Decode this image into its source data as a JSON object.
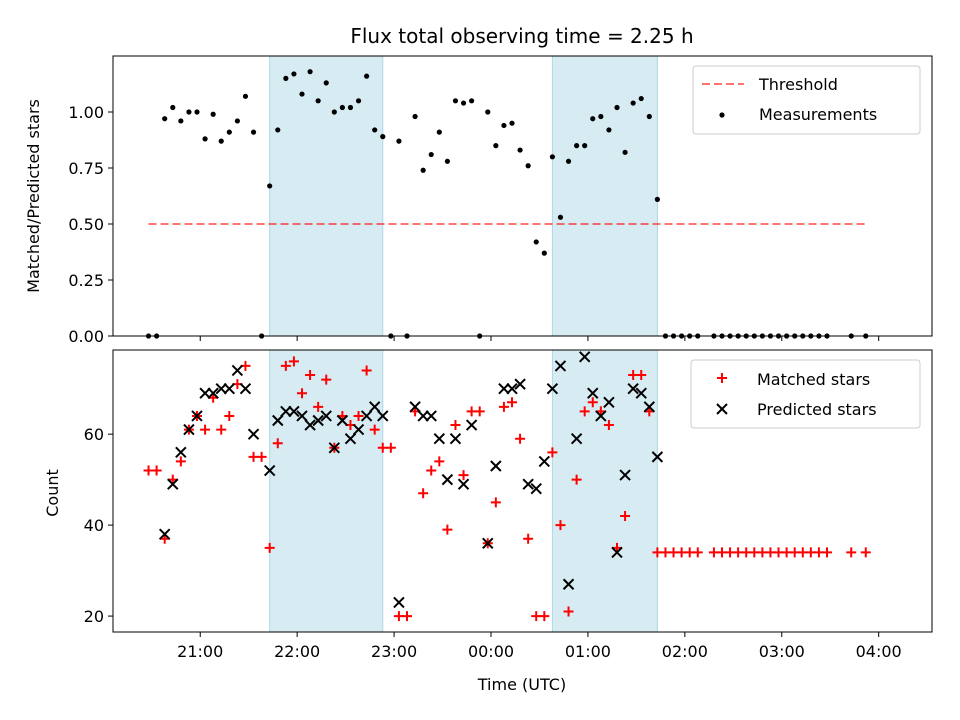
{
  "chart_data": [
    {
      "type": "scatter",
      "title": "Flux total observing time = 2.25 h",
      "xlabel": "",
      "ylabel": "Matched/Predicted stars",
      "ylim": [
        0,
        1.25
      ],
      "yticks": [
        "0.00",
        "0.25",
        "0.50",
        "0.75",
        "1.00"
      ],
      "xlim_hours": [
        20.1,
        28.55
      ],
      "grid": false,
      "legend": "top-right",
      "shaded_intervals": [
        [
          "21:43",
          "22:53"
        ],
        [
          "00:38",
          "01:43"
        ]
      ],
      "threshold": {
        "name": "Threshold",
        "value": 0.5,
        "x_start": "20:28",
        "x_end": "03:52"
      },
      "series": [
        {
          "name": "Measurements",
          "marker": "dot",
          "color": "#000000",
          "points": [
            [
              "20:28",
              0.0
            ],
            [
              "20:33",
              0.0
            ],
            [
              "20:38",
              0.97
            ],
            [
              "20:43",
              1.02
            ],
            [
              "20:48",
              0.96
            ],
            [
              "20:53",
              1.0
            ],
            [
              "20:58",
              1.0
            ],
            [
              "21:03",
              0.88
            ],
            [
              "21:08",
              0.99
            ],
            [
              "21:13",
              0.87
            ],
            [
              "21:18",
              0.91
            ],
            [
              "21:23",
              0.96
            ],
            [
              "21:28",
              1.07
            ],
            [
              "21:33",
              0.91
            ],
            [
              "21:38",
              0.0
            ],
            [
              "21:43",
              0.67
            ],
            [
              "21:48",
              0.92
            ],
            [
              "21:53",
              1.15
            ],
            [
              "21:58",
              1.17
            ],
            [
              "22:03",
              1.08
            ],
            [
              "22:08",
              1.18
            ],
            [
              "22:13",
              1.05
            ],
            [
              "22:18",
              1.13
            ],
            [
              "22:23",
              1.0
            ],
            [
              "22:28",
              1.02
            ],
            [
              "22:33",
              1.02
            ],
            [
              "22:38",
              1.05
            ],
            [
              "22:43",
              1.16
            ],
            [
              "22:48",
              0.92
            ],
            [
              "22:53",
              0.89
            ],
            [
              "22:58",
              0.0
            ],
            [
              "23:03",
              0.87
            ],
            [
              "23:08",
              0.0
            ],
            [
              "23:13",
              0.98
            ],
            [
              "23:18",
              0.74
            ],
            [
              "23:23",
              0.81
            ],
            [
              "23:28",
              0.91
            ],
            [
              "23:33",
              0.78
            ],
            [
              "23:38",
              1.05
            ],
            [
              "23:43",
              1.04
            ],
            [
              "23:48",
              1.05
            ],
            [
              "23:53",
              0.0
            ],
            [
              "23:58",
              1.0
            ],
            [
              "00:03",
              0.85
            ],
            [
              "00:08",
              0.94
            ],
            [
              "00:13",
              0.95
            ],
            [
              "00:18",
              0.83
            ],
            [
              "00:23",
              0.76
            ],
            [
              "00:28",
              0.42
            ],
            [
              "00:33",
              0.37
            ],
            [
              "00:38",
              0.8
            ],
            [
              "00:43",
              0.53
            ],
            [
              "00:48",
              0.78
            ],
            [
              "00:53",
              0.85
            ],
            [
              "00:58",
              0.85
            ],
            [
              "01:03",
              0.97
            ],
            [
              "01:08",
              0.98
            ],
            [
              "01:13",
              0.92
            ],
            [
              "01:18",
              1.02
            ],
            [
              "01:23",
              0.82
            ],
            [
              "01:28",
              1.04
            ],
            [
              "01:33",
              1.06
            ],
            [
              "01:38",
              0.98
            ],
            [
              "01:43",
              0.61
            ],
            [
              "01:48",
              0.0
            ],
            [
              "01:53",
              0.0
            ],
            [
              "01:58",
              0.0
            ],
            [
              "02:03",
              0.0
            ],
            [
              "02:08",
              0.0
            ],
            [
              "02:18",
              0.0
            ],
            [
              "02:23",
              0.0
            ],
            [
              "02:28",
              0.0
            ],
            [
              "02:33",
              0.0
            ],
            [
              "02:38",
              0.0
            ],
            [
              "02:43",
              0.0
            ],
            [
              "02:48",
              0.0
            ],
            [
              "02:53",
              0.0
            ],
            [
              "02:58",
              0.0
            ],
            [
              "03:03",
              0.0
            ],
            [
              "03:08",
              0.0
            ],
            [
              "03:13",
              0.0
            ],
            [
              "03:18",
              0.0
            ],
            [
              "03:23",
              0.0
            ],
            [
              "03:28",
              0.0
            ],
            [
              "03:43",
              0.0
            ],
            [
              "03:52",
              0.0
            ]
          ]
        }
      ]
    },
    {
      "type": "scatter",
      "title": "",
      "xlabel": "Time (UTC)",
      "ylabel": "Count",
      "ylim": [
        16.5,
        78.5
      ],
      "yticks": [
        "20",
        "40",
        "60"
      ],
      "xticks": [
        "21:00",
        "22:00",
        "23:00",
        "00:00",
        "01:00",
        "02:00",
        "03:00",
        "04:00"
      ],
      "xlim_hours": [
        20.1,
        28.55
      ],
      "grid": false,
      "legend": "top-right",
      "shaded_intervals": [
        [
          "21:43",
          "22:53"
        ],
        [
          "00:38",
          "01:43"
        ]
      ],
      "series": [
        {
          "name": "Matched stars",
          "marker": "plus",
          "color": "#ff0000",
          "points": [
            [
              "20:28",
              52
            ],
            [
              "20:33",
              52
            ],
            [
              "20:38",
              37
            ],
            [
              "20:43",
              50
            ],
            [
              "20:48",
              54
            ],
            [
              "20:53",
              61
            ],
            [
              "20:58",
              64
            ],
            [
              "21:03",
              61
            ],
            [
              "21:08",
              68
            ],
            [
              "21:13",
              61
            ],
            [
              "21:18",
              64
            ],
            [
              "21:23",
              71
            ],
            [
              "21:28",
              75
            ],
            [
              "21:33",
              55
            ],
            [
              "21:38",
              55
            ],
            [
              "21:43",
              35
            ],
            [
              "21:48",
              58
            ],
            [
              "21:53",
              75
            ],
            [
              "21:58",
              76
            ],
            [
              "22:03",
              69
            ],
            [
              "22:08",
              73
            ],
            [
              "22:13",
              66
            ],
            [
              "22:18",
              72
            ],
            [
              "22:23",
              57
            ],
            [
              "22:28",
              64
            ],
            [
              "22:33",
              62
            ],
            [
              "22:38",
              64
            ],
            [
              "22:43",
              74
            ],
            [
              "22:48",
              61
            ],
            [
              "22:53",
              57
            ],
            [
              "22:58",
              57
            ],
            [
              "23:03",
              20
            ],
            [
              "23:08",
              20
            ],
            [
              "23:13",
              65
            ],
            [
              "23:18",
              47
            ],
            [
              "23:23",
              52
            ],
            [
              "23:28",
              54
            ],
            [
              "23:33",
              39
            ],
            [
              "23:38",
              62
            ],
            [
              "23:43",
              51
            ],
            [
              "23:48",
              65
            ],
            [
              "23:53",
              65
            ],
            [
              "23:58",
              36
            ],
            [
              "00:03",
              45
            ],
            [
              "00:08",
              66
            ],
            [
              "00:13",
              67
            ],
            [
              "00:18",
              59
            ],
            [
              "00:23",
              37
            ],
            [
              "00:28",
              20
            ],
            [
              "00:33",
              20
            ],
            [
              "00:38",
              56
            ],
            [
              "00:43",
              40
            ],
            [
              "00:48",
              21
            ],
            [
              "00:53",
              50
            ],
            [
              "00:58",
              65
            ],
            [
              "01:03",
              67
            ],
            [
              "01:08",
              65
            ],
            [
              "01:13",
              62
            ],
            [
              "01:18",
              35
            ],
            [
              "01:23",
              42
            ],
            [
              "01:28",
              73
            ],
            [
              "01:33",
              73
            ],
            [
              "01:38",
              65
            ],
            [
              "01:43",
              34
            ],
            [
              "01:48",
              34
            ],
            [
              "01:53",
              34
            ],
            [
              "01:58",
              34
            ],
            [
              "02:03",
              34
            ],
            [
              "02:08",
              34
            ],
            [
              "02:18",
              34
            ],
            [
              "02:23",
              34
            ],
            [
              "02:28",
              34
            ],
            [
              "02:33",
              34
            ],
            [
              "02:38",
              34
            ],
            [
              "02:43",
              34
            ],
            [
              "02:48",
              34
            ],
            [
              "02:53",
              34
            ],
            [
              "02:58",
              34
            ],
            [
              "03:03",
              34
            ],
            [
              "03:08",
              34
            ],
            [
              "03:13",
              34
            ],
            [
              "03:18",
              34
            ],
            [
              "03:23",
              34
            ],
            [
              "03:28",
              34
            ],
            [
              "03:43",
              34
            ],
            [
              "03:52",
              34
            ]
          ]
        },
        {
          "name": "Predicted stars",
          "marker": "x",
          "color": "#000000",
          "points": [
            [
              "20:38",
              38
            ],
            [
              "20:43",
              49
            ],
            [
              "20:48",
              56
            ],
            [
              "20:53",
              61
            ],
            [
              "20:58",
              64
            ],
            [
              "21:03",
              69
            ],
            [
              "21:08",
              69
            ],
            [
              "21:13",
              70
            ],
            [
              "21:18",
              70
            ],
            [
              "21:23",
              74
            ],
            [
              "21:28",
              70
            ],
            [
              "21:33",
              60
            ],
            [
              "21:43",
              52
            ],
            [
              "21:48",
              63
            ],
            [
              "21:53",
              65
            ],
            [
              "21:58",
              65
            ],
            [
              "22:03",
              64
            ],
            [
              "22:08",
              62
            ],
            [
              "22:13",
              63
            ],
            [
              "22:18",
              64
            ],
            [
              "22:23",
              57
            ],
            [
              "22:28",
              63
            ],
            [
              "22:33",
              59
            ],
            [
              "22:38",
              61
            ],
            [
              "22:43",
              64
            ],
            [
              "22:48",
              66
            ],
            [
              "22:53",
              64
            ],
            [
              "23:03",
              23
            ],
            [
              "23:13",
              66
            ],
            [
              "23:18",
              64
            ],
            [
              "23:23",
              64
            ],
            [
              "23:28",
              59
            ],
            [
              "23:33",
              50
            ],
            [
              "23:38",
              59
            ],
            [
              "23:43",
              49
            ],
            [
              "23:48",
              62
            ],
            [
              "23:58",
              36
            ],
            [
              "00:03",
              53
            ],
            [
              "00:08",
              70
            ],
            [
              "00:13",
              70
            ],
            [
              "00:18",
              71
            ],
            [
              "00:23",
              49
            ],
            [
              "00:28",
              48
            ],
            [
              "00:33",
              54
            ],
            [
              "00:38",
              70
            ],
            [
              "00:43",
              75
            ],
            [
              "00:48",
              27
            ],
            [
              "00:53",
              59
            ],
            [
              "00:58",
              77
            ],
            [
              "01:03",
              69
            ],
            [
              "01:08",
              64
            ],
            [
              "01:13",
              67
            ],
            [
              "01:18",
              34
            ],
            [
              "01:23",
              51
            ],
            [
              "01:28",
              70
            ],
            [
              "01:33",
              69
            ],
            [
              "01:38",
              66
            ],
            [
              "01:43",
              55
            ]
          ]
        }
      ]
    }
  ]
}
